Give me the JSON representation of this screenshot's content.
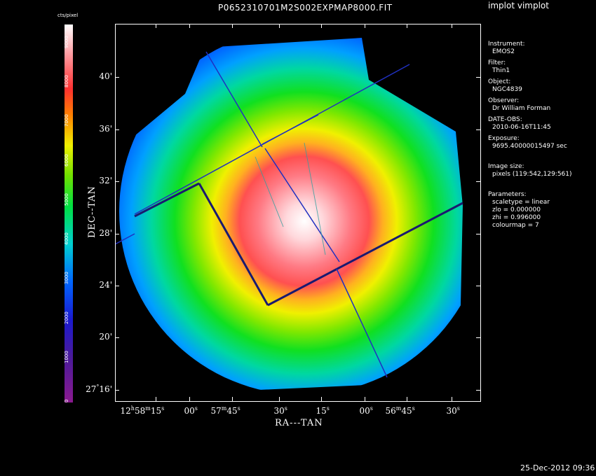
{
  "app_title": "implot vimplot",
  "plot_title": "P0652310701M2S002EXPMAP8000.FIT",
  "footer_date": "25-Dec-2012 09:36",
  "colorbar": {
    "label": "cts/pixel",
    "ticks": [
      "0",
      "1000",
      "2000",
      "3000",
      "4000",
      "5000",
      "6000",
      "7000",
      "8000",
      "9000"
    ],
    "colormap": "rainbow",
    "min": 0,
    "max": 9600
  },
  "axes": {
    "xlabel": "RA---TAN",
    "ylabel": "DEC--TAN",
    "xticks": [
      {
        "pre": "12",
        "s1": "h",
        "mid": "58",
        "s2": "m",
        "post": "15",
        "s3": "s"
      },
      {
        "pre": "",
        "s1": "",
        "mid": "",
        "s2": "",
        "post": "00",
        "s3": "s"
      },
      {
        "pre": "",
        "s1": "",
        "mid": "57",
        "s2": "m",
        "post": "45",
        "s3": "s"
      },
      {
        "pre": "",
        "s1": "",
        "mid": "",
        "s2": "",
        "post": "30",
        "s3": "s"
      },
      {
        "pre": "",
        "s1": "",
        "mid": "",
        "s2": "",
        "post": "15",
        "s3": "s"
      },
      {
        "pre": "",
        "s1": "",
        "mid": "",
        "s2": "",
        "post": "00",
        "s3": "s"
      },
      {
        "pre": "",
        "s1": "",
        "mid": "56",
        "s2": "m",
        "post": "45",
        "s3": "s"
      },
      {
        "pre": "",
        "s1": "",
        "mid": "",
        "s2": "",
        "post": "30",
        "s3": "s"
      }
    ],
    "yticks": [
      {
        "deg": "27",
        "arc": "16'"
      },
      {
        "deg": "",
        "arc": "20'"
      },
      {
        "deg": "",
        "arc": "24'"
      },
      {
        "deg": "",
        "arc": "28'"
      },
      {
        "deg": "",
        "arc": "32'"
      },
      {
        "deg": "",
        "arc": "36'"
      },
      {
        "deg": "",
        "arc": "40'"
      }
    ]
  },
  "info": {
    "instrument_label": "Instrument:",
    "instrument": "EMOS2",
    "filter_label": "Filter:",
    "filter": "Thin1",
    "object_label": "Object:",
    "object": "NGC4839",
    "observer_label": "Observer:",
    "observer": "Dr William Forman",
    "date_label": "DATE-OBS:",
    "date": "2010-06-16T11:45",
    "exposure_label": "Exposure:",
    "exposure": "9695.40000015497 sec",
    "imagesize_label": "Image size:",
    "imagesize": "pixels (119:542,129:561)",
    "params_label": "Parameters:",
    "params": [
      "scaletype = linear",
      "zlo = 0.000000",
      "zhi = 0.996000",
      "colourmap = 7"
    ]
  }
}
